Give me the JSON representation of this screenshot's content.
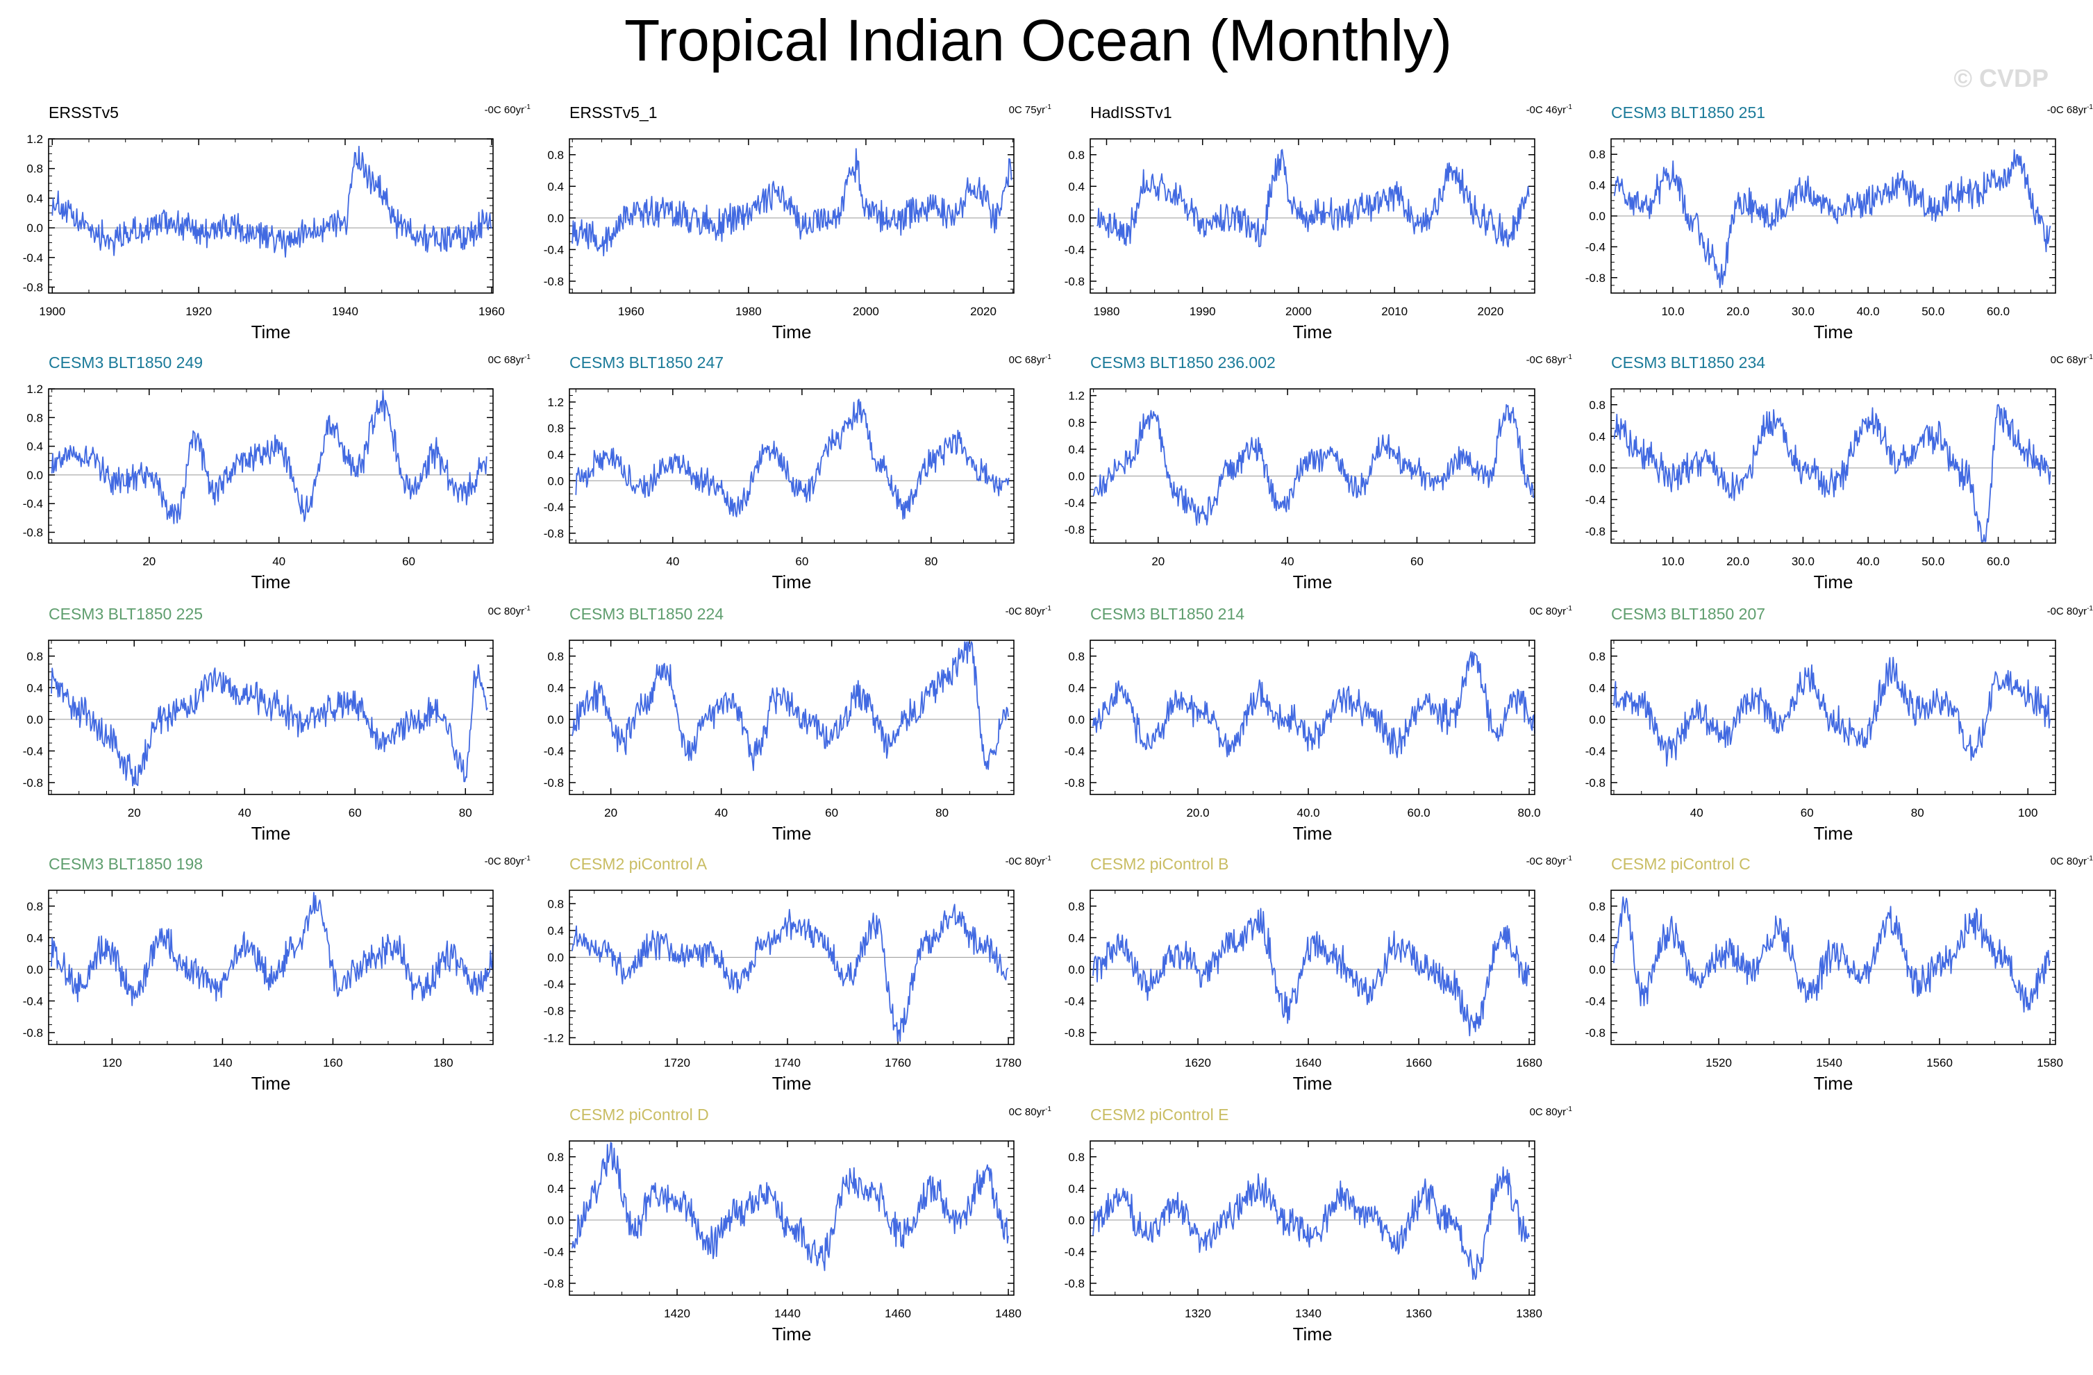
{
  "title": "Tropical Indian Ocean (Monthly)",
  "watermark": "© CVDP",
  "colors": {
    "line": "#4169e1",
    "zero": "#999999",
    "obs": "#000000",
    "cesm3a": "#1a7a99",
    "cesm3b": "#5f9e6e",
    "cesm2": "#c9bd63"
  },
  "chart_data": [
    {
      "type": "line",
      "title": "ERSSTv5",
      "trend": "-0C 60yr",
      "xlabel": "Time",
      "xlim": [
        1899.5,
        1960.2
      ],
      "xticks": [
        1900,
        1920,
        1940,
        1960
      ],
      "ylim": [
        -0.88,
        1.2
      ],
      "yticks": [
        "1.2",
        "0.8",
        "0.4",
        "0.0",
        "-0.4",
        "-0.8"
      ],
      "x": [
        1900,
        1904,
        1908,
        1912,
        1916,
        1920,
        1924,
        1928,
        1932,
        1936,
        1940,
        1941.5,
        1944,
        1948,
        1952,
        1956,
        1960
      ],
      "values": [
        0.35,
        0.05,
        -0.15,
        -0.05,
        0.1,
        -0.05,
        0.0,
        -0.1,
        -0.2,
        0.0,
        0.1,
        0.95,
        0.55,
        0.0,
        -0.15,
        -0.1,
        0.1
      ]
    },
    {
      "type": "line",
      "title": "ERSSTv5_1",
      "trend": "0C 75yr",
      "xlabel": "Time",
      "xlim": [
        1949.5,
        2025.2
      ],
      "xticks": [
        1960,
        1980,
        2000,
        2020
      ],
      "ylim": [
        -0.95,
        1.0
      ],
      "yticks": [
        "0.8",
        "0.4",
        "0.0",
        "-0.4",
        "-0.8"
      ],
      "x": [
        1950,
        1955,
        1960,
        1965,
        1970,
        1975,
        1980,
        1985,
        1990,
        1995,
        1998,
        2000,
        2005,
        2010,
        2015,
        2019,
        2022,
        2024.8
      ],
      "values": [
        -0.1,
        -0.3,
        0.05,
        0.1,
        0.0,
        -0.1,
        0.1,
        0.3,
        -0.1,
        0.05,
        0.7,
        0.1,
        -0.05,
        0.15,
        0.05,
        0.45,
        0.0,
        0.6
      ]
    },
    {
      "type": "line",
      "title": "HadISSTv1",
      "trend": "-0C 46yr",
      "xlabel": "Time",
      "xlim": [
        1978.3,
        2024.6
      ],
      "xticks": [
        1980,
        1990,
        2000,
        2010,
        2020
      ],
      "ylim": [
        -0.95,
        1.0
      ],
      "yticks": [
        "0.8",
        "0.4",
        "0.0",
        "-0.4",
        "-0.8"
      ],
      "x": [
        1979,
        1982,
        1984,
        1987,
        1990,
        1993,
        1996,
        1998,
        2000,
        2004,
        2007,
        2010,
        2013,
        2016,
        2019,
        2022,
        2024
      ],
      "values": [
        0.0,
        -0.2,
        0.4,
        0.3,
        -0.1,
        0.0,
        -0.2,
        0.7,
        0.0,
        0.05,
        0.1,
        0.3,
        -0.1,
        0.55,
        0.0,
        -0.2,
        0.4
      ]
    },
    {
      "type": "line",
      "title": "CESM3 BLT1850 251",
      "trend": "-0C 68yr",
      "xlabel": "Time",
      "xlim": [
        0.5,
        68.8
      ],
      "xticks": [
        10,
        20,
        30,
        40,
        50,
        60
      ],
      "xtick_labels": [
        "10.0",
        "20.0",
        "30.0",
        "40.0",
        "50.0",
        "60.0"
      ],
      "ylim": [
        -1.0,
        1.0
      ],
      "yticks": [
        "0.8",
        "0.4",
        "0.0",
        "-0.4",
        "-0.8"
      ],
      "x": [
        1,
        5,
        10,
        13,
        16,
        17,
        20,
        25,
        30,
        35,
        40,
        45,
        50,
        55,
        60,
        63,
        66,
        68
      ],
      "values": [
        0.4,
        0.1,
        0.5,
        -0.1,
        -0.5,
        -0.85,
        0.2,
        0.0,
        0.3,
        0.1,
        0.2,
        0.4,
        0.1,
        0.3,
        0.4,
        0.7,
        0.0,
        -0.3
      ]
    },
    {
      "type": "line",
      "title": "CESM3 BLT1850 249",
      "trend": "0C 68yr",
      "xlabel": "Time",
      "xlim": [
        4.5,
        73.0
      ],
      "xticks": [
        20,
        40,
        60
      ],
      "ylim": [
        -0.95,
        1.2
      ],
      "yticks": [
        "1.2",
        "0.8",
        "0.4",
        "0.0",
        "-0.4",
        "-0.8"
      ],
      "x": [
        5,
        10,
        15,
        20,
        24,
        27,
        30,
        35,
        40,
        44,
        48,
        52,
        56,
        60,
        64,
        68,
        72
      ],
      "values": [
        0.2,
        0.3,
        -0.1,
        0.0,
        -0.6,
        0.5,
        -0.2,
        0.2,
        0.4,
        -0.5,
        0.7,
        0.1,
        1.0,
        -0.2,
        0.3,
        -0.3,
        0.1
      ]
    },
    {
      "type": "line",
      "title": "CESM3 BLT1850 247",
      "trend": "0C 68yr",
      "xlabel": "Time",
      "xlim": [
        24.0,
        92.8
      ],
      "xticks": [
        40,
        60,
        80
      ],
      "ylim": [
        -0.95,
        1.4
      ],
      "yticks": [
        "1.2",
        "0.8",
        "0.4",
        "0.0",
        "-0.4",
        "-0.8"
      ],
      "x": [
        25,
        30,
        35,
        40,
        45,
        50,
        55,
        60,
        65,
        69,
        72,
        76,
        80,
        84,
        88,
        92
      ],
      "values": [
        0.0,
        0.4,
        -0.1,
        0.3,
        0.0,
        -0.4,
        0.5,
        -0.2,
        0.6,
        1.05,
        0.2,
        -0.4,
        0.3,
        0.6,
        0.1,
        -0.1
      ]
    },
    {
      "type": "line",
      "title": "CESM3 BLT1850 236.002",
      "trend": "-0C 68yr",
      "xlabel": "Time",
      "xlim": [
        9.5,
        78.2
      ],
      "xticks": [
        20,
        40,
        60
      ],
      "ylim": [
        -1.0,
        1.3
      ],
      "yticks": [
        "1.2",
        "0.8",
        "0.4",
        "0.0",
        "-0.4",
        "-0.8"
      ],
      "x": [
        10,
        15,
        19,
        23,
        27,
        31,
        35,
        39,
        43,
        47,
        51,
        55,
        59,
        63,
        67,
        71,
        74,
        78
      ],
      "values": [
        -0.2,
        0.2,
        0.9,
        -0.3,
        -0.6,
        0.1,
        0.4,
        -0.5,
        0.2,
        0.3,
        -0.2,
        0.5,
        0.1,
        -0.1,
        0.3,
        0.0,
        1.0,
        -0.3
      ]
    },
    {
      "type": "line",
      "title": "CESM3 BLT1850 234",
      "trend": "0C 68yr",
      "xlabel": "Time",
      "xlim": [
        0.5,
        68.8
      ],
      "xticks": [
        10,
        20,
        30,
        40,
        50,
        60
      ],
      "xtick_labels": [
        "10.0",
        "20.0",
        "30.0",
        "40.0",
        "50.0",
        "60.0"
      ],
      "ylim": [
        -0.95,
        1.0
      ],
      "yticks": [
        "0.8",
        "0.4",
        "0.0",
        "-0.4",
        "-0.8"
      ],
      "x": [
        1,
        5,
        10,
        15,
        20,
        25,
        30,
        35,
        40,
        45,
        50,
        55,
        58,
        60,
        64,
        68
      ],
      "values": [
        0.5,
        0.2,
        -0.1,
        0.1,
        -0.3,
        0.6,
        0.0,
        -0.2,
        0.6,
        0.1,
        0.4,
        -0.1,
        -0.9,
        0.7,
        0.2,
        0.0
      ]
    },
    {
      "type": "line",
      "title": "CESM3 BLT1850 225",
      "trend": "0C 80yr",
      "xlabel": "Time",
      "xlim": [
        4.5,
        85.0
      ],
      "xticks": [
        20,
        40,
        60,
        80
      ],
      "ylim": [
        -0.95,
        1.0
      ],
      "yticks": [
        "0.8",
        "0.4",
        "0.0",
        "-0.4",
        "-0.8"
      ],
      "x": [
        5,
        10,
        15,
        20,
        25,
        30,
        35,
        40,
        45,
        50,
        55,
        60,
        65,
        70,
        75,
        80,
        82,
        84
      ],
      "values": [
        0.5,
        0.1,
        -0.2,
        -0.7,
        0.0,
        0.2,
        0.5,
        0.3,
        0.2,
        0.0,
        0.1,
        0.2,
        -0.3,
        0.0,
        0.1,
        -0.6,
        0.6,
        0.2
      ]
    },
    {
      "type": "line",
      "title": "CESM3 BLT1850 224",
      "trend": "-0C 80yr",
      "xlabel": "Time",
      "xlim": [
        12.5,
        93.0
      ],
      "xticks": [
        20,
        40,
        60,
        80
      ],
      "ylim": [
        -0.95,
        1.0
      ],
      "yticks": [
        "0.8",
        "0.4",
        "0.0",
        "-0.4",
        "-0.8"
      ],
      "x": [
        13,
        18,
        22,
        26,
        30,
        34,
        38,
        42,
        46,
        50,
        55,
        60,
        65,
        70,
        75,
        80,
        85,
        88,
        92
      ],
      "values": [
        0.0,
        0.3,
        -0.3,
        0.2,
        0.65,
        -0.4,
        0.1,
        0.2,
        -0.5,
        0.3,
        0.0,
        -0.2,
        0.3,
        -0.3,
        0.1,
        0.5,
        0.9,
        -0.5,
        0.1
      ]
    },
    {
      "type": "line",
      "title": "CESM3 BLT1850 214",
      "trend": "0C 80yr",
      "xlabel": "Time",
      "xlim": [
        0.5,
        81.0
      ],
      "xticks": [
        20,
        40,
        60,
        80
      ],
      "xtick_labels": [
        "20.0",
        "40.0",
        "60.0",
        "80.0"
      ],
      "ylim": [
        -0.95,
        1.0
      ],
      "yticks": [
        "0.8",
        "0.4",
        "0.0",
        "-0.4",
        "-0.8"
      ],
      "x": [
        1,
        6,
        11,
        16,
        21,
        26,
        31,
        36,
        41,
        46,
        51,
        56,
        61,
        66,
        70,
        74,
        78,
        81
      ],
      "values": [
        0.0,
        0.3,
        -0.3,
        0.2,
        0.1,
        -0.4,
        0.3,
        0.0,
        -0.2,
        0.3,
        0.1,
        -0.3,
        0.2,
        0.0,
        0.8,
        -0.2,
        0.3,
        -0.1
      ]
    },
    {
      "type": "line",
      "title": "CESM3 BLT1850 207",
      "trend": "-0C 80yr",
      "xlabel": "Time",
      "xlim": [
        24.5,
        105.0
      ],
      "xticks": [
        40,
        60,
        80,
        100
      ],
      "ylim": [
        -0.95,
        1.0
      ],
      "yticks": [
        "0.8",
        "0.4",
        "0.0",
        "-0.4",
        "-0.8"
      ],
      "x": [
        25,
        30,
        35,
        40,
        45,
        50,
        55,
        60,
        65,
        70,
        75,
        80,
        85,
        90,
        95,
        100,
        104
      ],
      "values": [
        0.3,
        0.2,
        -0.4,
        0.1,
        -0.2,
        0.3,
        -0.1,
        0.5,
        0.0,
        -0.3,
        0.6,
        0.1,
        0.2,
        -0.4,
        0.5,
        0.3,
        0.1
      ]
    },
    {
      "type": "line",
      "title": "CESM3 BLT1850 198",
      "trend": "-0C 80yr",
      "xlabel": "Time",
      "xlim": [
        108.5,
        189.0
      ],
      "xticks": [
        120,
        140,
        160,
        180
      ],
      "ylim": [
        -0.95,
        1.0
      ],
      "yticks": [
        "0.8",
        "0.4",
        "0.0",
        "-0.4",
        "-0.8"
      ],
      "x": [
        109,
        114,
        119,
        124,
        129,
        134,
        139,
        144,
        149,
        153,
        157,
        161,
        166,
        171,
        176,
        181,
        186,
        189
      ],
      "values": [
        0.2,
        -0.2,
        0.3,
        -0.3,
        0.4,
        0.0,
        -0.2,
        0.3,
        -0.1,
        0.3,
        0.85,
        -0.2,
        0.1,
        0.3,
        -0.3,
        0.2,
        -0.2,
        0.1
      ]
    },
    {
      "type": "line",
      "title": "CESM2 piControl A",
      "trend": "-0C 80yr",
      "xlabel": "Time",
      "xlim": [
        1700.5,
        1781.0
      ],
      "xticks": [
        1720,
        1740,
        1760,
        1780
      ],
      "ylim": [
        -1.3,
        1.0
      ],
      "yticks": [
        "0.8",
        "0.4",
        "0.0",
        "-0.4",
        "-0.8",
        "-1.2"
      ],
      "x": [
        1701,
        1706,
        1711,
        1716,
        1721,
        1726,
        1731,
        1736,
        1741,
        1746,
        1751,
        1756,
        1760,
        1765,
        1770,
        1775,
        1780
      ],
      "values": [
        0.3,
        0.1,
        -0.2,
        0.2,
        0.0,
        0.1,
        -0.4,
        0.2,
        0.5,
        0.3,
        -0.3,
        0.5,
        -1.1,
        0.2,
        0.6,
        0.2,
        -0.2
      ]
    },
    {
      "type": "line",
      "title": "CESM2 piControl B",
      "trend": "-0C 80yr",
      "xlabel": "Time",
      "xlim": [
        1600.5,
        1681.0
      ],
      "xticks": [
        1620,
        1640,
        1660,
        1680
      ],
      "ylim": [
        -0.95,
        1.0
      ],
      "yticks": [
        "0.8",
        "0.4",
        "0.0",
        "-0.4",
        "-0.8"
      ],
      "x": [
        1601,
        1606,
        1611,
        1616,
        1621,
        1626,
        1631,
        1636,
        1641,
        1646,
        1651,
        1656,
        1661,
        1666,
        1670,
        1675,
        1680
      ],
      "values": [
        0.0,
        0.3,
        -0.2,
        0.2,
        0.0,
        0.3,
        0.6,
        -0.5,
        0.3,
        0.1,
        -0.3,
        0.3,
        0.0,
        -0.2,
        -0.7,
        0.4,
        -0.1
      ]
    },
    {
      "type": "line",
      "title": "CESM2 piControl C",
      "trend": "0C 80yr",
      "xlabel": "Time",
      "xlim": [
        1500.5,
        1581.0
      ],
      "xticks": [
        1520,
        1540,
        1560,
        1580
      ],
      "ylim": [
        -0.95,
        1.0
      ],
      "yticks": [
        "0.8",
        "0.4",
        "0.0",
        "-0.4",
        "-0.8"
      ],
      "x": [
        1501,
        1503,
        1506,
        1511,
        1516,
        1521,
        1526,
        1531,
        1536,
        1541,
        1546,
        1551,
        1556,
        1561,
        1566,
        1571,
        1576,
        1580
      ],
      "values": [
        0.2,
        0.8,
        -0.3,
        0.5,
        -0.1,
        0.2,
        0.0,
        0.5,
        -0.3,
        0.2,
        -0.1,
        0.6,
        -0.2,
        0.1,
        0.6,
        0.2,
        -0.4,
        0.1
      ]
    },
    {
      "type": "line",
      "title": "CESM2 piControl D",
      "trend": "0C 80yr",
      "xlabel": "Time",
      "xlim": [
        1400.5,
        1481.0
      ],
      "xticks": [
        1420,
        1440,
        1460,
        1480
      ],
      "ylim": [
        -0.95,
        1.0
      ],
      "yticks": [
        "0.8",
        "0.4",
        "0.0",
        "-0.4",
        "-0.8"
      ],
      "x": [
        1401,
        1405,
        1408,
        1412,
        1416,
        1421,
        1426,
        1431,
        1436,
        1441,
        1446,
        1451,
        1456,
        1461,
        1466,
        1471,
        1476,
        1480
      ],
      "values": [
        -0.2,
        0.3,
        0.8,
        -0.1,
        0.3,
        0.2,
        -0.3,
        0.1,
        0.3,
        -0.1,
        -0.5,
        0.5,
        0.3,
        -0.2,
        0.4,
        0.0,
        0.6,
        -0.2
      ]
    },
    {
      "type": "line",
      "title": "CESM2 piControl E",
      "trend": "0C 80yr",
      "xlabel": "Time",
      "xlim": [
        1300.5,
        1381.0
      ],
      "xticks": [
        1320,
        1340,
        1360,
        1380
      ],
      "ylim": [
        -0.95,
        1.0
      ],
      "yticks": [
        "0.8",
        "0.4",
        "0.0",
        "-0.4",
        "-0.8"
      ],
      "x": [
        1301,
        1306,
        1311,
        1316,
        1321,
        1326,
        1331,
        1336,
        1341,
        1346,
        1351,
        1356,
        1361,
        1366,
        1370,
        1375,
        1380
      ],
      "values": [
        0.0,
        0.3,
        -0.2,
        0.2,
        -0.3,
        0.1,
        0.4,
        0.0,
        -0.2,
        0.3,
        0.1,
        -0.3,
        0.3,
        0.0,
        -0.6,
        0.5,
        -0.2
      ]
    }
  ]
}
